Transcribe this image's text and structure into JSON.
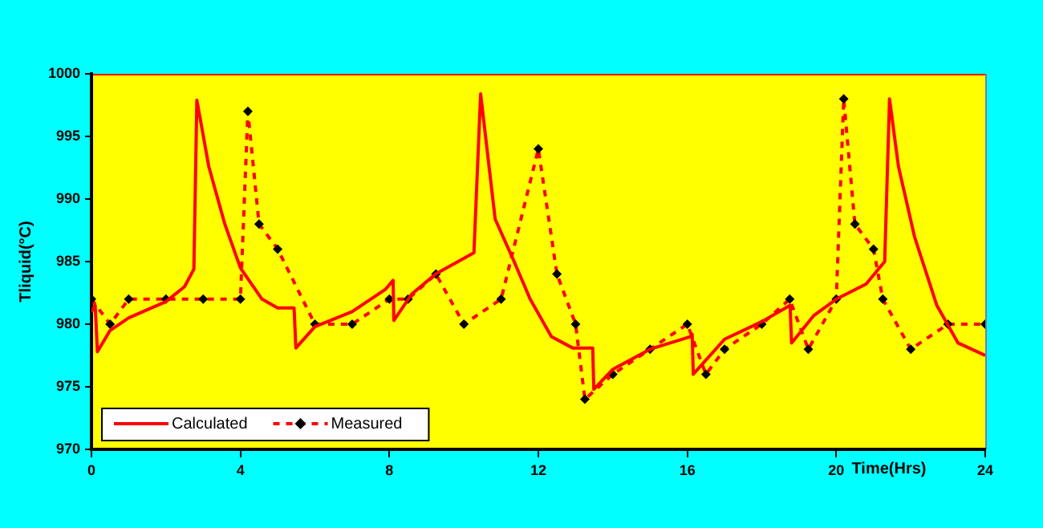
{
  "chart_data": {
    "type": "line",
    "xlabel": "Time(Hrs)",
    "ylabel": "Tliquid(°C)",
    "xlim": [
      0,
      24
    ],
    "xticks": [
      0,
      4,
      8,
      12,
      16,
      20,
      24
    ],
    "ylim": [
      970,
      1000
    ],
    "yticks": [
      970,
      975,
      980,
      985,
      990,
      995,
      1000
    ],
    "grid": false,
    "legend": "bottom left",
    "series": [
      {
        "name": "Calculated",
        "color": "#ff0000",
        "line_style": "solid",
        "marker": "none",
        "x": [
          0,
          0.1,
          0.16,
          0.5,
          1,
          2,
          2.5,
          2.75,
          2.83,
          3.15,
          3.58,
          4,
          4.58,
          5,
          5.44,
          5.49,
          6,
          7,
          7.9,
          8.1,
          8.12,
          8.6,
          9.24,
          10.27,
          10.45,
          10.84,
          11.35,
          11.78,
          12.35,
          12.92,
          13.46,
          13.49,
          14,
          15,
          16.08,
          16.13,
          16.16,
          17,
          18,
          18.76,
          18.8,
          19.4,
          20,
          20.8,
          21.3,
          21.43,
          21.67,
          22.1,
          22.7,
          23.27,
          24
        ],
        "values": [
          981,
          981.5,
          977.8,
          979.5,
          980.5,
          981.8,
          983,
          984.4,
          997.9,
          992.6,
          988,
          984.5,
          982,
          981.3,
          981.3,
          978.1,
          979.8,
          981,
          982.8,
          983.5,
          980.3,
          982.4,
          984,
          985.7,
          998.4,
          988.4,
          985,
          982,
          979,
          978.1,
          978.1,
          974.8,
          976.4,
          978,
          979,
          979.2,
          976,
          978.8,
          980.2,
          981.5,
          978.5,
          980.7,
          982,
          983.2,
          985,
          998,
          992.6,
          987,
          981.5,
          978.5,
          977.5
        ]
      },
      {
        "name": "Measured",
        "color": "#ff0000",
        "line_style": "dashed",
        "marker": "diamond",
        "x": [
          0,
          0.5,
          1,
          2,
          3,
          4,
          4.2,
          4.5,
          5,
          6,
          7,
          8,
          8.5,
          9.25,
          10,
          11,
          12,
          12.5,
          13,
          13.25,
          14,
          15,
          16,
          16.5,
          17,
          18,
          18.75,
          19.25,
          20,
          20.2,
          20.5,
          21,
          21.25,
          22,
          23,
          24
        ],
        "values": [
          982,
          980,
          982,
          982,
          982,
          982,
          997,
          988,
          986,
          980,
          980,
          982,
          982,
          984,
          980,
          982,
          994,
          984,
          980,
          974,
          976,
          978,
          980,
          976,
          978,
          980,
          982,
          978,
          982,
          998,
          988,
          986,
          982,
          978,
          980,
          980
        ]
      }
    ]
  }
}
